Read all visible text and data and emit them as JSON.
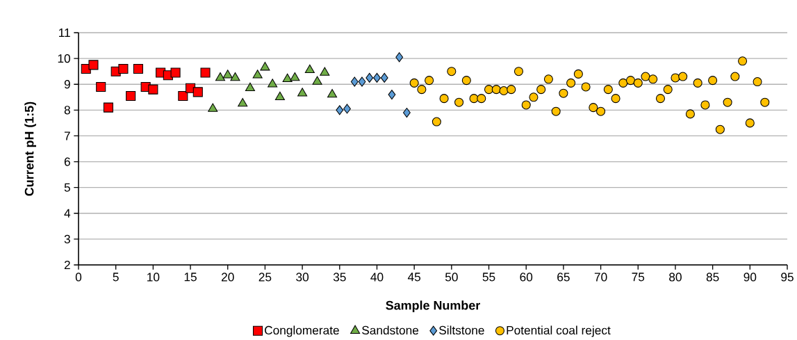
{
  "chart_data": {
    "type": "scatter",
    "xlabel": "Sample Number",
    "ylabel": "Current pH (1:5)",
    "xlim": [
      0,
      95
    ],
    "ylim": [
      2,
      11
    ],
    "xticks": [
      0,
      5,
      10,
      15,
      20,
      25,
      30,
      35,
      40,
      45,
      50,
      55,
      60,
      65,
      70,
      75,
      80,
      85,
      90,
      95
    ],
    "yticks": [
      2,
      3,
      4,
      5,
      6,
      7,
      8,
      9,
      10,
      11
    ],
    "grid": "y",
    "legend": "bottom",
    "series": [
      {
        "name": "Conglomerate",
        "color": "#ff0000",
        "marker": "square",
        "x": [
          1,
          2,
          3,
          4,
          5,
          6,
          7,
          8,
          9,
          10,
          11,
          12,
          13,
          14,
          15,
          16,
          17
        ],
        "values": [
          9.6,
          9.75,
          8.9,
          8.1,
          9.5,
          9.6,
          8.55,
          9.6,
          8.9,
          8.8,
          9.45,
          9.35,
          9.45,
          8.55,
          8.85,
          8.7,
          9.45
        ]
      },
      {
        "name": "Sandstone",
        "color": "#70ad47",
        "marker": "triangle",
        "x": [
          18,
          19,
          20,
          21,
          22,
          23,
          24,
          25,
          26,
          27,
          28,
          29,
          30,
          31,
          32,
          33,
          34
        ],
        "values": [
          8.05,
          9.25,
          9.35,
          9.25,
          8.25,
          8.85,
          9.35,
          9.65,
          9.0,
          8.5,
          9.2,
          9.25,
          8.65,
          9.55,
          9.1,
          9.45,
          8.6
        ]
      },
      {
        "name": "Siltstone",
        "color": "#5b9bd5",
        "marker": "diamond",
        "x": [
          35,
          36,
          37,
          38,
          39,
          40,
          41,
          42,
          43,
          44
        ],
        "values": [
          8.0,
          8.05,
          9.1,
          9.1,
          9.25,
          9.25,
          9.25,
          8.6,
          10.05,
          7.9
        ]
      },
      {
        "name": "Potential coal reject",
        "color": "#ffc000",
        "marker": "circle",
        "x": [
          45,
          46,
          47,
          48,
          49,
          50,
          51,
          52,
          53,
          54,
          55,
          56,
          57,
          58,
          59,
          60,
          61,
          62,
          63,
          64,
          65,
          66,
          67,
          68,
          69,
          70,
          71,
          72,
          73,
          74,
          75,
          76,
          77,
          78,
          79,
          80,
          81,
          82,
          83,
          84,
          85,
          86,
          87,
          88,
          89,
          90,
          91,
          92
        ],
        "values": [
          9.05,
          8.8,
          9.15,
          7.55,
          8.45,
          9.5,
          8.3,
          9.15,
          8.45,
          8.45,
          8.8,
          8.8,
          8.75,
          8.8,
          9.5,
          8.2,
          8.5,
          8.8,
          9.2,
          7.95,
          8.65,
          9.05,
          9.4,
          8.9,
          8.1,
          7.95,
          8.8,
          8.45,
          9.05,
          9.15,
          9.05,
          9.3,
          9.2,
          8.45,
          8.8,
          9.25,
          9.3,
          7.85,
          9.05,
          8.2,
          9.15,
          7.25,
          8.3,
          9.3,
          9.9,
          7.5,
          9.1,
          8.3
        ]
      }
    ]
  }
}
